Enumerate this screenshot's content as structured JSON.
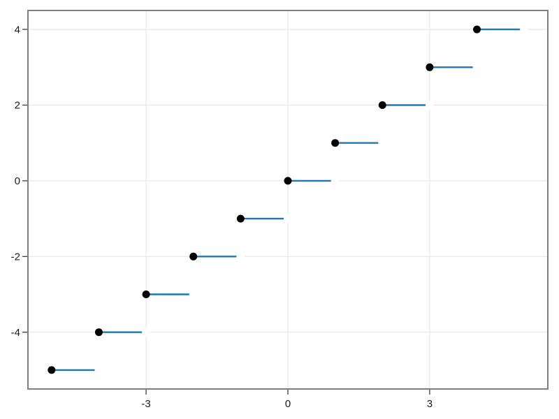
{
  "chart_data": {
    "type": "line",
    "subtype": "step-post-with-markers",
    "title": "",
    "xlabel": "",
    "ylabel": "",
    "grid": true,
    "legend": false,
    "xlim": [
      -5.5,
      5.5
    ],
    "ylim": [
      -5.5,
      4.5
    ],
    "xticks": {
      "values": [
        -3,
        0,
        3
      ],
      "labels": [
        "-3",
        "0",
        "3"
      ]
    },
    "yticks": {
      "values": [
        -4,
        -2,
        0,
        2,
        4
      ],
      "labels": [
        "-4",
        "-2",
        "0",
        "2",
        "4"
      ]
    },
    "steps": [
      {
        "x_start": -5,
        "x_end": -4,
        "y": -5
      },
      {
        "x_start": -4,
        "x_end": -3,
        "y": -4
      },
      {
        "x_start": -3,
        "x_end": -2,
        "y": -3
      },
      {
        "x_start": -2,
        "x_end": -1,
        "y": -2
      },
      {
        "x_start": -1,
        "x_end": 0,
        "y": -1
      },
      {
        "x_start": 0,
        "x_end": 1,
        "y": 0
      },
      {
        "x_start": 1,
        "x_end": 2,
        "y": 1
      },
      {
        "x_start": 2,
        "x_end": 3,
        "y": 2
      },
      {
        "x_start": 3,
        "x_end": 4,
        "y": 3
      },
      {
        "x_start": 4,
        "x_end": 5,
        "y": 4
      }
    ],
    "closed_points": [
      [
        -5,
        -5
      ],
      [
        -4,
        -4
      ],
      [
        -3,
        -3
      ],
      [
        -2,
        -2
      ],
      [
        -1,
        -1
      ],
      [
        0,
        0
      ],
      [
        1,
        1
      ],
      [
        2,
        2
      ],
      [
        3,
        3
      ],
      [
        4,
        4
      ]
    ],
    "open_points": [
      [
        -4,
        -5
      ],
      [
        -3,
        -4
      ],
      [
        -2,
        -3
      ],
      [
        -1,
        -2
      ],
      [
        0,
        -1
      ],
      [
        1,
        0
      ],
      [
        2,
        1
      ],
      [
        3,
        2
      ],
      [
        4,
        3
      ],
      [
        5,
        4
      ]
    ],
    "colors": {
      "line": "#1f77b4",
      "closed_marker": "#000000",
      "open_marker_fill": "#ffffff",
      "grid": "#e7e7e7",
      "frame": "#7f7f7f",
      "tick": "#3a3a3a",
      "tick_label": "#1a1a1a",
      "background": "#ffffff"
    },
    "style": {
      "line_width": 2.4,
      "closed_marker_radius": 5.5,
      "open_marker_radius": 6,
      "grid_width": 1.2,
      "frame_width": 2,
      "tick_length": 7,
      "tick_width": 1.3,
      "tick_font_size": 15
    }
  }
}
